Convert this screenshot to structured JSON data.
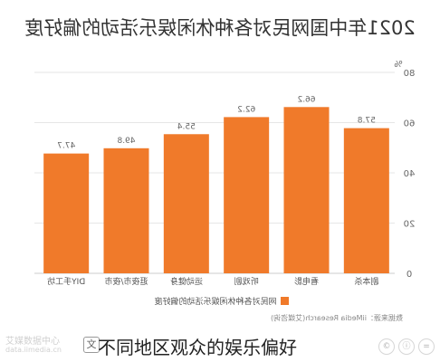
{
  "chart_data": {
    "type": "bar",
    "title": "2021年中国网民对各种休闲娱乐活动的偏好度",
    "unit": "%",
    "categories": [
      "DIY手工坊",
      "逛夜市/夜市",
      "运动健身",
      "听戏剧",
      "看电影",
      "剧本杀"
    ],
    "values": [
      47.7,
      49.8,
      55.4,
      62.2,
      66.2,
      57.8
    ],
    "value_labels": [
      "47.7",
      "49.8",
      "55.4",
      "62.2",
      "66.2",
      "57.8"
    ],
    "ylim": [
      0,
      80
    ],
    "yticks": [
      "0",
      "20",
      "40",
      "60",
      "80"
    ],
    "legend": "网民对各种休闲娱乐活动的偏好度",
    "source": "数据来源：iiMedia Research(艾媒咨询)",
    "bar_color": "#f07a2a",
    "grid": true
  },
  "caption": "不同地区观众的娱乐偏好",
  "watermark": {
    "left_line1": "艾媒数据中心",
    "left_line2": "data.iimedia.cn",
    "badge": "文"
  }
}
